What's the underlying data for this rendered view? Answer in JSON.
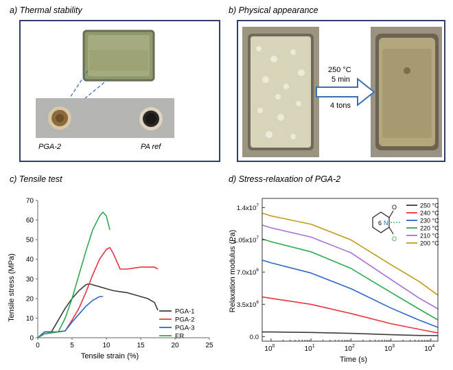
{
  "panels": {
    "a": {
      "title": "a) Thermal stability",
      "caption_left": "PGA-2",
      "caption_right": "PA ref"
    },
    "b": {
      "title": "b) Physical appearance",
      "condition_temp": "250 °C",
      "condition_time": "5 min",
      "condition_pressure": "4 tons"
    },
    "c": {
      "title": "c) Tensile test"
    },
    "d": {
      "title": "d) Stress-relaxation of PGA-2"
    }
  },
  "colors": {
    "frame": "#2f3e6e",
    "arrow": "#3a6fb5"
  },
  "chart_data": [
    {
      "type": "line",
      "xlabel": "Tensile strain (%)",
      "ylabel": "Tensile stress (MPa)",
      "xlim": [
        0,
        25
      ],
      "ylim": [
        0,
        70
      ],
      "xticks": [
        "0",
        "5",
        "10",
        "15",
        "20",
        "25"
      ],
      "yticks": [
        "0",
        "10",
        "20",
        "30",
        "40",
        "50",
        "60",
        "70"
      ],
      "legend_position": "bottom-right",
      "series": [
        {
          "name": "PGA-1",
          "color": "#3b3b3b",
          "x": [
            0,
            1,
            2,
            3,
            4,
            5,
            6,
            7,
            7.5,
            8,
            9,
            10,
            11,
            12,
            13,
            14,
            15,
            16,
            17,
            17.5
          ],
          "y": [
            0,
            3,
            3,
            9,
            15,
            20,
            24,
            27,
            27.5,
            27,
            26,
            25,
            24,
            23.5,
            23,
            22,
            21,
            20,
            18,
            14
          ]
        },
        {
          "name": "PGA-2",
          "color": "#e8343b",
          "x": [
            0,
            1,
            2,
            3,
            4,
            5,
            6,
            7,
            8,
            9,
            10,
            10.5,
            11,
            12,
            13,
            14,
            15,
            16,
            17,
            17.5
          ],
          "y": [
            0,
            2,
            2.5,
            3,
            3.5,
            9,
            15,
            23,
            32,
            40,
            45,
            46,
            43,
            35,
            35,
            35.5,
            36,
            36,
            36,
            35
          ]
        },
        {
          "name": "PGA-3",
          "color": "#2a67c7",
          "x": [
            0,
            1,
            2,
            3,
            4,
            5,
            6,
            7,
            8,
            9,
            9.5
          ],
          "y": [
            0,
            3,
            3,
            3,
            3.5,
            8,
            12,
            16,
            19,
            21,
            21
          ]
        },
        {
          "name": "ER",
          "color": "#2ea84f",
          "x": [
            0,
            1,
            2,
            3,
            4,
            5,
            6,
            7,
            8,
            9,
            9.5,
            10,
            10.5
          ],
          "y": [
            0,
            2,
            2.5,
            3,
            10,
            20,
            32,
            44,
            55,
            62,
            64,
            62,
            55
          ]
        }
      ]
    },
    {
      "type": "line",
      "xscale": "log",
      "xlabel": "Time (s)",
      "ylabel": "Relaxation modulus (Pa)",
      "xlim": [
        0.6,
        15000
      ],
      "ylim": [
        -0.05,
        1.5
      ],
      "xticks": [
        {
          "value": 1,
          "base": "10",
          "exp": "0"
        },
        {
          "value": 10,
          "base": "10",
          "exp": "1"
        },
        {
          "value": 100,
          "base": "10",
          "exp": "2"
        },
        {
          "value": 1000,
          "base": "10",
          "exp": "3"
        },
        {
          "value": 10000,
          "base": "10",
          "exp": "4"
        }
      ],
      "yticks": [
        {
          "value": 0,
          "label": "0.0",
          "exp": ""
        },
        {
          "value": 0.35,
          "label": "3.5x10",
          "exp": "6"
        },
        {
          "value": 0.7,
          "label": "7.0x10",
          "exp": "6"
        },
        {
          "value": 1.05,
          "label": "1.05x10",
          "exp": "7"
        },
        {
          "value": 1.4,
          "label": "1.4x10",
          "exp": "7"
        }
      ],
      "legend_position": "top-right",
      "molecule": {
        "ring_label": "6",
        "atom_n": "N",
        "atom_o_top": "O",
        "atom_o_bottom": "O"
      },
      "series": [
        {
          "name": "250 °C",
          "color": "#3b3b3b",
          "x": [
            0.6,
            1,
            10,
            100,
            1000,
            5000,
            15000
          ],
          "y": [
            0.05,
            0.05,
            0.045,
            0.035,
            0.02,
            0.012,
            0.01
          ]
        },
        {
          "name": "240 °C",
          "color": "#e8343b",
          "x": [
            0.6,
            1,
            10,
            100,
            1000,
            5000,
            15000
          ],
          "y": [
            0.43,
            0.415,
            0.35,
            0.25,
            0.14,
            0.08,
            0.04
          ]
        },
        {
          "name": "230 °C",
          "color": "#2a67c7",
          "x": [
            0.6,
            1,
            10,
            100,
            1000,
            5000,
            15000
          ],
          "y": [
            0.83,
            0.8,
            0.69,
            0.52,
            0.31,
            0.18,
            0.1
          ]
        },
        {
          "name": "220 °C",
          "color": "#2ea84f",
          "x": [
            0.6,
            1,
            10,
            100,
            1000,
            5000,
            15000
          ],
          "y": [
            1.06,
            1.03,
            0.92,
            0.74,
            0.48,
            0.3,
            0.18
          ]
        },
        {
          "name": "210 °C",
          "color": "#a86fd6",
          "x": [
            0.6,
            1,
            10,
            100,
            1000,
            5000,
            15000
          ],
          "y": [
            1.21,
            1.18,
            1.08,
            0.91,
            0.62,
            0.42,
            0.3
          ]
        },
        {
          "name": "200 °C",
          "color": "#c49a1a",
          "x": [
            0.6,
            1,
            10,
            100,
            1000,
            5000,
            15000
          ],
          "y": [
            1.34,
            1.31,
            1.22,
            1.05,
            0.78,
            0.6,
            0.45
          ]
        }
      ]
    }
  ]
}
